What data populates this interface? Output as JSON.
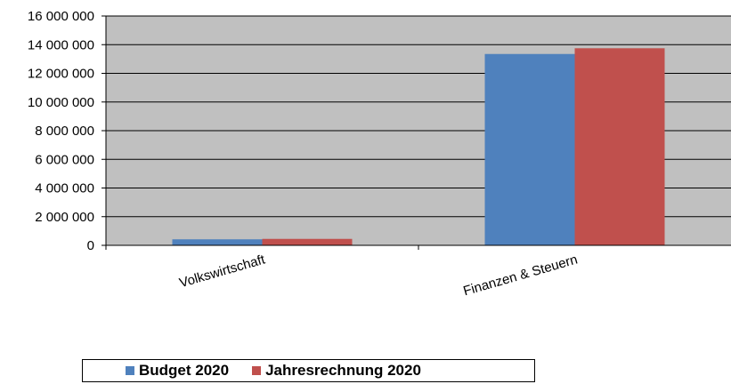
{
  "chart_data": {
    "type": "bar",
    "title": "",
    "xlabel": "",
    "ylabel": "",
    "categories": [
      "Volkswirtschaft",
      "Finanzen & Steuern"
    ],
    "series": [
      {
        "name": "Budget 2020",
        "color": "#4f81bd",
        "values": [
          420000,
          13350000
        ]
      },
      {
        "name": "Jahresrechnung 2020",
        "color": "#c0504d",
        "values": [
          450000,
          13750000
        ]
      }
    ],
    "ylim": [
      0,
      16000000
    ],
    "yticks": [
      0,
      2000000,
      4000000,
      6000000,
      8000000,
      10000000,
      12000000,
      14000000,
      16000000
    ],
    "ytick_labels": [
      "0",
      "2 000 000",
      "4 000 000",
      "6 000 000",
      "8 000 000",
      "10 000 000",
      "12 000 000",
      "14 000 000",
      "16 000 000"
    ],
    "grid": true,
    "plot_background": "#c0c0c0",
    "legend_position": "bottom"
  }
}
